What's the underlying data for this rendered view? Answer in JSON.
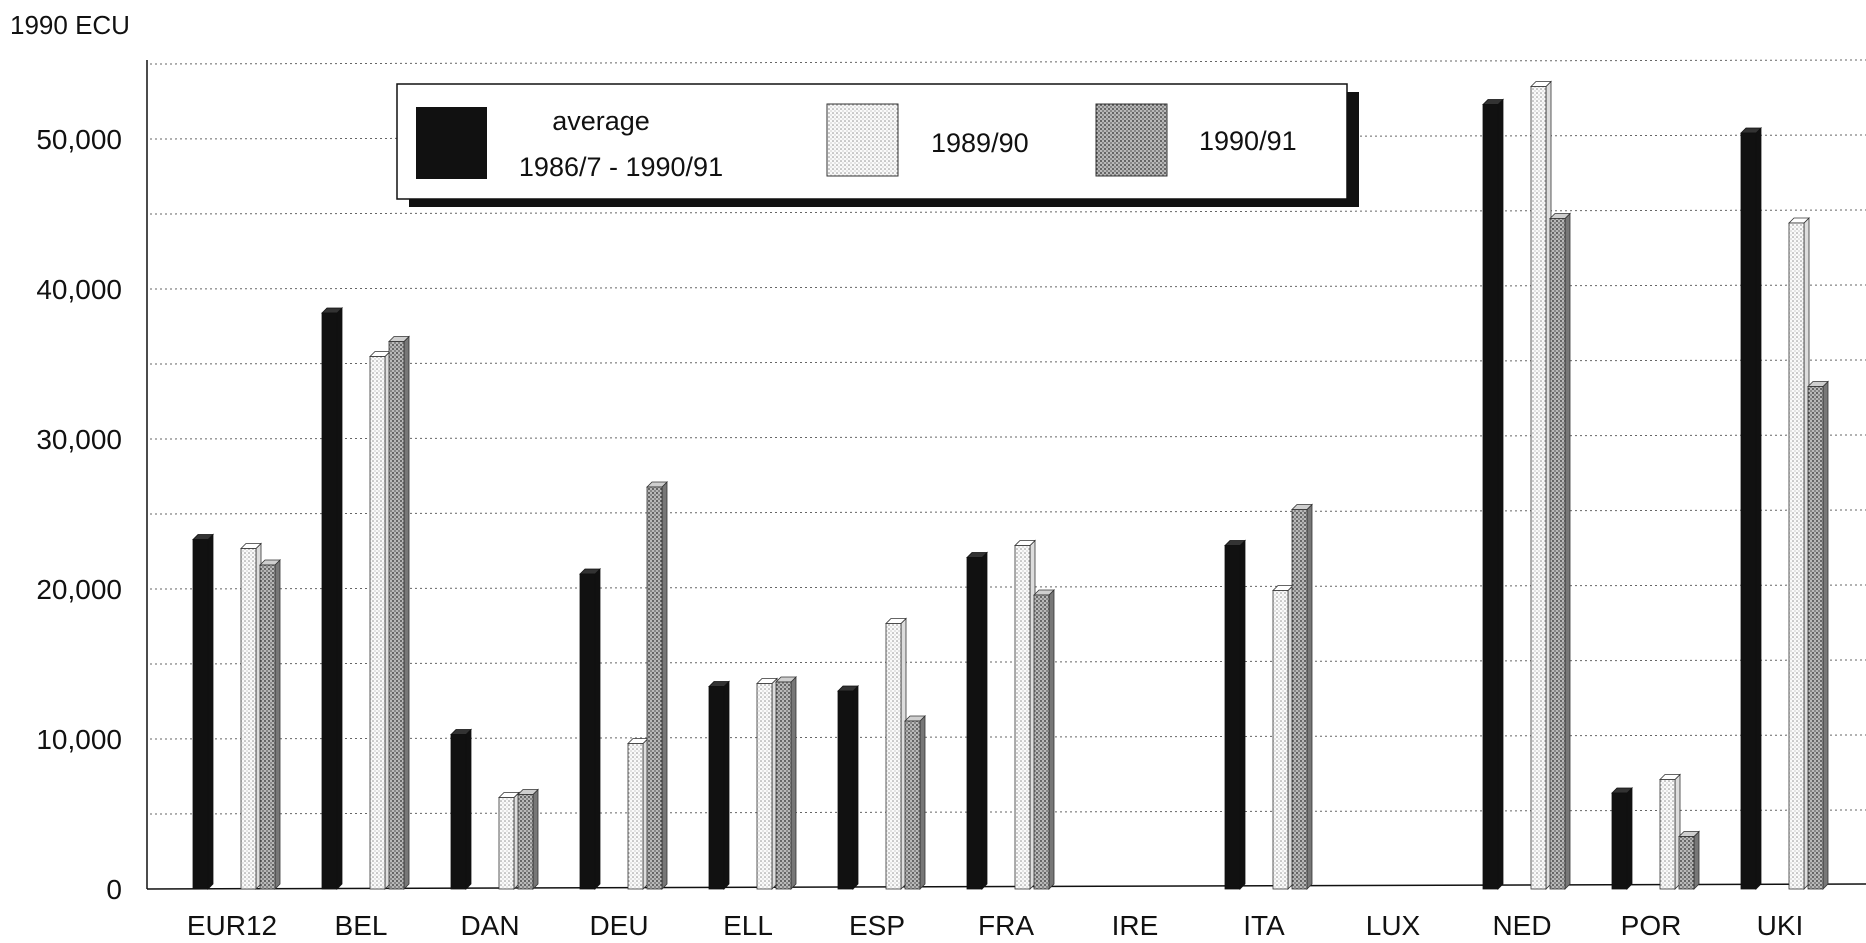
{
  "chart_data": {
    "type": "bar",
    "ylabel": "1990 ECU",
    "ylim": [
      0,
      55000
    ],
    "yticks": [
      0,
      10000,
      20000,
      30000,
      40000,
      50000
    ],
    "ytick_labels": [
      "0",
      "10,000",
      "20,000",
      "30,000",
      "40,000",
      "50,000"
    ],
    "grid": "dotted horizontal lines at every 5,000",
    "legend_position": "top-center",
    "categories": [
      "EUR12",
      "BEL",
      "DAN",
      "DEU",
      "ELL",
      "ESP",
      "FRA",
      "IRE",
      "ITA",
      "LUX",
      "NED",
      "POR",
      "UKI"
    ],
    "series": [
      {
        "name": "average 1986/7 - 1990/91",
        "legend_lines": [
          "average",
          "1986/7 - 1990/91"
        ],
        "color": "#111111",
        "pattern": "solid",
        "values": [
          23300,
          38400,
          10300,
          21000,
          13500,
          13200,
          22100,
          null,
          22900,
          null,
          52300,
          6400,
          50400
        ]
      },
      {
        "name": "1989/90",
        "legend_lines": [
          "1989/90"
        ],
        "color": "#f2f2f2",
        "pattern": "light-dots",
        "values": [
          22700,
          35500,
          6100,
          9700,
          13700,
          17700,
          22900,
          null,
          19900,
          null,
          53500,
          7300,
          44400
        ]
      },
      {
        "name": "1990/91",
        "legend_lines": [
          "1990/91"
        ],
        "color": "#9a9a9a",
        "pattern": "dark-dots",
        "values": [
          21600,
          36500,
          6300,
          26800,
          13800,
          11200,
          19600,
          null,
          25300,
          null,
          44700,
          3500,
          33500
        ]
      }
    ]
  }
}
